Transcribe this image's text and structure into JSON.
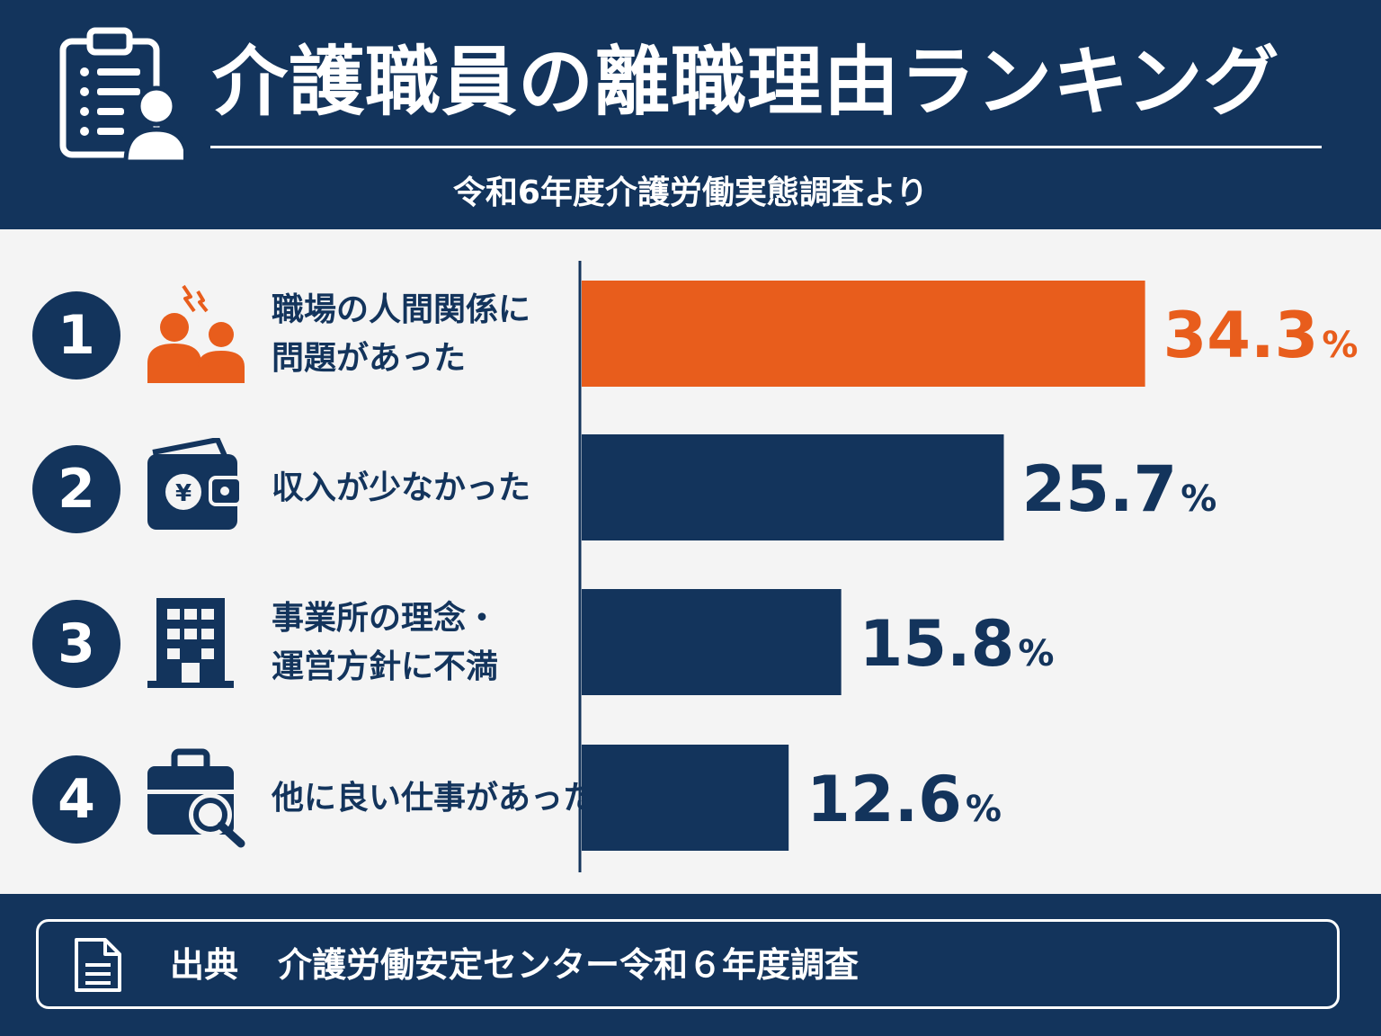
{
  "header": {
    "title": "介護職員の離職理由ランキング",
    "subtitle": "令和6年度介護労働実態調査より",
    "icon": "clipboard-person-icon"
  },
  "ranking": [
    {
      "rank": "1",
      "icon": "stressed-people-icon",
      "reason_lines": [
        "職場の人間関係に",
        "問題があった"
      ],
      "value_label": "34.3",
      "unit": "%"
    },
    {
      "rank": "2",
      "icon": "wallet-yen-icon",
      "reason_lines": [
        "収入が少なかった"
      ],
      "value_label": "25.7",
      "unit": "%"
    },
    {
      "rank": "3",
      "icon": "office-building-icon",
      "reason_lines": [
        "事業所の理念・",
        "運営方針に不満"
      ],
      "value_label": "15.8",
      "unit": "%"
    },
    {
      "rank": "4",
      "icon": "briefcase-search-icon",
      "reason_lines": [
        "他に良い仕事があった"
      ],
      "value_label": "12.6",
      "unit": "%"
    }
  ],
  "chart_data": {
    "type": "bar",
    "orientation": "horizontal",
    "categories": [
      "職場の人間関係に問題があった",
      "収入が少なかった",
      "事業所の理念・運営方針に不満",
      "他に良い仕事があった"
    ],
    "values": [
      34.3,
      25.7,
      15.8,
      12.6
    ],
    "unit": "%",
    "xlim": [
      0,
      48.5
    ],
    "grid": false,
    "legend": "none",
    "colors": {
      "highlight": "#e85d1c",
      "default": "#13345c"
    }
  },
  "footer": {
    "label": "出典",
    "source": "介護労働安定センター令和６年度調査",
    "icon": "document-icon"
  }
}
